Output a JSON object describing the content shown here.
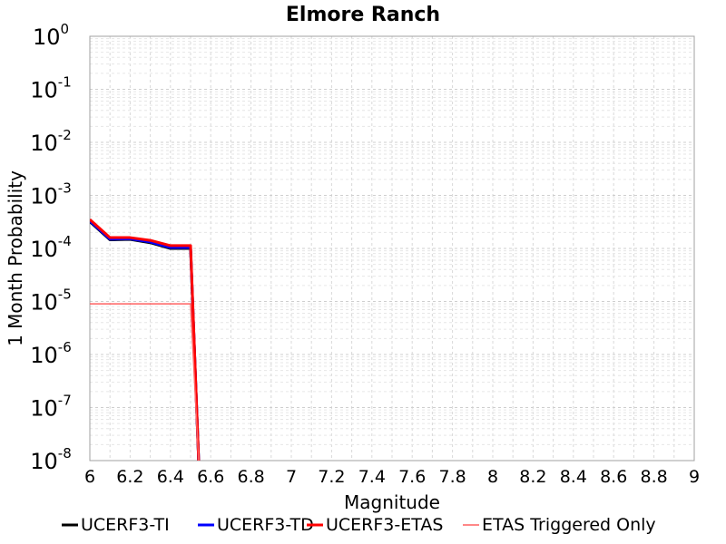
{
  "chart_data": {
    "type": "line",
    "title": "Elmore Ranch",
    "xlabel": "Magnitude",
    "ylabel": "1 Month Probability",
    "xlim": [
      6,
      9
    ],
    "ylim_exponents": [
      -8,
      0
    ],
    "y_scale": "log",
    "grid": true,
    "legend_position": "bottom",
    "x_ticks": [
      "6",
      "6.2",
      "6.4",
      "6.6",
      "6.8",
      "7",
      "7.2",
      "7.4",
      "7.6",
      "7.8",
      "8",
      "8.2",
      "8.4",
      "8.6",
      "8.8",
      "9"
    ],
    "y_tick_base": "10",
    "y_tick_exponents": [
      "0",
      "-1",
      "-2",
      "-3",
      "-4",
      "-5",
      "-6",
      "-7",
      "-8"
    ],
    "series": [
      {
        "name": "UCERF3-TI",
        "color": "#000000",
        "width": 3,
        "x": [
          6.0,
          6.1,
          6.2,
          6.3,
          6.4,
          6.5,
          6.54
        ],
        "y": [
          0.00032,
          0.000145,
          0.000148,
          0.000128,
          0.0001,
          0.0001,
          1e-08
        ]
      },
      {
        "name": "UCERF3-TD",
        "color": "#0000ff",
        "width": 3,
        "x": [
          6.0,
          6.1,
          6.2,
          6.3,
          6.4,
          6.5,
          6.54
        ],
        "y": [
          0.00033,
          0.00015,
          0.000152,
          0.000132,
          0.000104,
          0.000104,
          1e-08
        ]
      },
      {
        "name": "UCERF3-ETAS",
        "color": "#ff0000",
        "width": 3,
        "x": [
          6.0,
          6.1,
          6.2,
          6.3,
          6.4,
          6.5,
          6.54
        ],
        "y": [
          0.00035,
          0.00016,
          0.00016,
          0.000142,
          0.000113,
          0.000113,
          1e-08
        ]
      },
      {
        "name": "ETAS Triggered Only",
        "color": "#ff6060",
        "width": 1.5,
        "x": [
          6.0,
          6.1,
          6.2,
          6.3,
          6.4,
          6.5,
          6.54
        ],
        "y": [
          9e-06,
          9e-06,
          9e-06,
          9e-06,
          9e-06,
          9e-06,
          1e-08
        ]
      }
    ]
  }
}
